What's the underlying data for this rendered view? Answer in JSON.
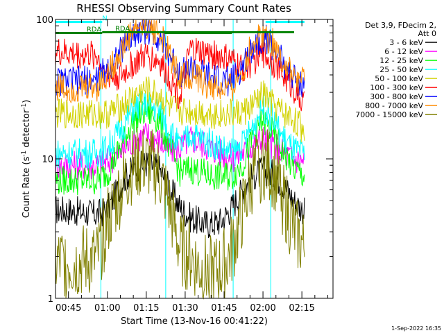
{
  "chart_data": {
    "type": "line",
    "title": "RHESSI Observing Summary Count Rates",
    "xlabel": "Start Time (13-Nov-16 00:41:22)",
    "ylabel": "Count Rate (s",
    "ylabel_sup": "-1",
    "ylabel_mid": " detector",
    "ylabel_end": ")",
    "yscale": "log",
    "ylim": [
      1,
      100
    ],
    "y_ticks": [
      {
        "v": 1,
        "label": "1"
      },
      {
        "v": 10,
        "label": "10"
      },
      {
        "v": 100,
        "label": "100"
      }
    ],
    "xlim_minutes": [
      40,
      147
    ],
    "x_ticks": [
      {
        "m": 45,
        "label": "00:45"
      },
      {
        "m": 60,
        "label": "01:00"
      },
      {
        "m": 75,
        "label": "01:15"
      },
      {
        "m": 90,
        "label": "01:30"
      },
      {
        "m": 105,
        "label": "01:45"
      },
      {
        "m": 120,
        "label": "02:00"
      },
      {
        "m": 135,
        "label": "02:15"
      }
    ],
    "legend_header": [
      "Det 3,9, FDecim 2,",
      "Att 0"
    ],
    "legend_position": "right",
    "series": [
      {
        "name": "3 - 6 keV",
        "color": "#000000",
        "x": [
          40,
          44,
          48,
          56,
          60,
          66,
          70,
          75,
          80,
          84,
          88,
          92,
          96,
          100,
          104,
          108,
          112,
          116,
          120,
          124,
          128,
          132,
          136
        ],
        "y": [
          4.3,
          4.3,
          4.2,
          4.0,
          4.3,
          7.0,
          8.5,
          9.3,
          8.5,
          6.2,
          4.5,
          3.8,
          3.5,
          3.4,
          3.6,
          4.5,
          6.0,
          7.5,
          8.3,
          7.8,
          6.5,
          5.0,
          4.2
        ]
      },
      {
        "name": "6 - 12 keV",
        "color": "#ff00ff",
        "x": [
          40,
          44,
          48,
          56,
          60,
          66,
          70,
          75,
          80,
          84,
          88,
          92,
          96,
          100,
          104,
          108,
          112,
          116,
          120,
          124,
          128,
          132,
          136
        ],
        "y": [
          9.0,
          9.0,
          9.0,
          9.0,
          9.5,
          11.5,
          13.5,
          15.0,
          13.5,
          11.5,
          12.0,
          14.0,
          13.0,
          12.0,
          11.0,
          10.0,
          11.0,
          12.5,
          14.0,
          12.5,
          11.0,
          10.0,
          9.5
        ]
      },
      {
        "name": "12 - 25 keV",
        "color": "#00ff00",
        "x": [
          40,
          44,
          48,
          56,
          60,
          66,
          70,
          75,
          80,
          84,
          88,
          92,
          96,
          100,
          104,
          108,
          112,
          116,
          120,
          124,
          128,
          132,
          136
        ],
        "y": [
          7.0,
          7.0,
          7.0,
          7.0,
          8.0,
          13.0,
          19.0,
          22.0,
          19.0,
          12.0,
          8.0,
          8.5,
          8.0,
          7.5,
          7.5,
          7.5,
          9.0,
          14.0,
          19.0,
          15.0,
          11.0,
          8.5,
          7.5
        ]
      },
      {
        "name": "25 - 50 keV",
        "color": "#00ffff",
        "x": [
          40,
          44,
          48,
          56,
          60,
          66,
          70,
          75,
          80,
          84,
          88,
          92,
          96,
          100,
          104,
          108,
          112,
          116,
          120,
          124,
          128,
          132,
          136
        ],
        "y": [
          11.0,
          11.0,
          11.0,
          11.0,
          12.0,
          17.0,
          23.0,
          25.0,
          22.0,
          16.0,
          12.0,
          15.0,
          14.0,
          13.0,
          12.0,
          11.0,
          12.5,
          17.0,
          24.0,
          19.0,
          14.0,
          11.5,
          10.5
        ]
      },
      {
        "name": "50 - 100 keV",
        "color": "#d2d200",
        "x": [
          40,
          44,
          48,
          56,
          60,
          66,
          70,
          75,
          80,
          84,
          88,
          92,
          96,
          100,
          104,
          108,
          112,
          116,
          120,
          124,
          128,
          132,
          136
        ],
        "y": [
          21.0,
          21.0,
          21.0,
          21.0,
          21.0,
          24.0,
          28.0,
          31.0,
          28.0,
          23.0,
          22.0,
          22.0,
          21.5,
          21.0,
          21.0,
          21.0,
          21.5,
          24.0,
          29.0,
          24.0,
          21.0,
          19.0,
          16.0
        ]
      },
      {
        "name": "100 - 300 keV",
        "color": "#ff0000",
        "x": [
          40,
          44,
          48,
          56,
          60,
          66,
          70,
          75,
          80,
          84,
          88,
          92,
          96,
          100,
          104,
          108,
          112,
          116,
          120,
          124,
          128,
          132,
          136
        ],
        "y": [
          58.0,
          57.0,
          56.0,
          55.0,
          38.0,
          40.0,
          48.0,
          55.0,
          50.0,
          38.0,
          28.0,
          60.0,
          58.0,
          56.0,
          54.0,
          50.0,
          44.0,
          50.0,
          58.0,
          50.0,
          40.0,
          32.0,
          24.0
        ]
      },
      {
        "name": "300 - 800 keV",
        "color": "#0000ff",
        "x": [
          40,
          44,
          48,
          56,
          60,
          66,
          70,
          75,
          80,
          84,
          88,
          92,
          96,
          100,
          104,
          108,
          112,
          116,
          120,
          124,
          128,
          132,
          136
        ],
        "y": [
          36.0,
          36.0,
          36.0,
          37.0,
          45.0,
          62.0,
          78.0,
          85.0,
          75.0,
          55.0,
          42.0,
          44.0,
          41.0,
          38.0,
          36.0,
          36.0,
          45.0,
          65.0,
          75.0,
          64.0,
          48.0,
          38.0,
          33.0
        ]
      },
      {
        "name": "800 - 7000 keV",
        "color": "#ff8c00",
        "x": [
          40,
          44,
          48,
          56,
          60,
          66,
          70,
          75,
          80,
          84,
          88,
          92,
          96,
          100,
          104,
          108,
          112,
          116,
          120,
          124,
          128,
          132,
          136
        ],
        "y": [
          33.0,
          32.0,
          32.0,
          33.0,
          40.0,
          62.0,
          85.0,
          92.0,
          80.0,
          55.0,
          38.0,
          40.0,
          36.0,
          33.0,
          31.0,
          32.0,
          42.0,
          68.0,
          80.0,
          68.0,
          48.0,
          38.0,
          35.0
        ]
      },
      {
        "name": "7000 - 15000 keV",
        "color": "#808000",
        "x": [
          40,
          44,
          48,
          56,
          60,
          66,
          70,
          75,
          80,
          84,
          88,
          92,
          96,
          100,
          104,
          108,
          112,
          116,
          120,
          124,
          128,
          132,
          136
        ],
        "y": [
          1.8,
          1.8,
          1.8,
          1.9,
          3.5,
          6.5,
          9.0,
          9.5,
          8.0,
          4.5,
          2.2,
          2.0,
          1.6,
          1.5,
          1.6,
          2.2,
          4.0,
          7.5,
          9.5,
          8.0,
          5.0,
          3.0,
          2.3
        ]
      }
    ],
    "attenuator_lines_minutes": [
      57.5,
      82.5,
      108.5,
      123
    ],
    "bars": [
      {
        "label": "N",
        "color": "#00ffff",
        "x0": 40,
        "x1": 58,
        "y": 96,
        "label_m": 58
      },
      {
        "label": "",
        "color": "#00ffff",
        "x0": 121,
        "x1": 136,
        "y": 96,
        "label_m": 121
      },
      {
        "label": "RDA",
        "color": "#008000",
        "x0": 40,
        "x1": 58,
        "y": 80,
        "label_m": 52
      },
      {
        "label": "RDA",
        "color": "#008000",
        "x0": 58,
        "x1": 132,
        "y": 81,
        "label_m": 63
      },
      {
        "label": "",
        "color": "#008000",
        "x0": 82,
        "x1": 108,
        "y": 80,
        "label_m": 82
      }
    ],
    "timestamp": "1-Sep-2022 16:35"
  }
}
